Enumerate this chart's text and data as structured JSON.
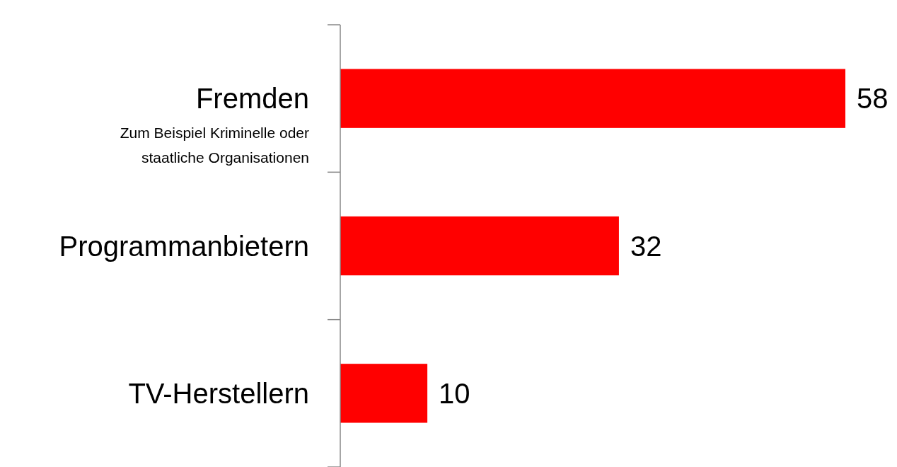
{
  "chart_data": {
    "type": "bar",
    "orientation": "horizontal",
    "categories": [
      "Fremden",
      "Programmanbietern",
      "TV-Herstellern"
    ],
    "values": [
      58,
      32,
      10
    ],
    "color": "#ff0000",
    "data_labels": true,
    "annotations": [
      "Zum Beispiel Kriminelle oder staatliche Organisationen"
    ]
  }
}
